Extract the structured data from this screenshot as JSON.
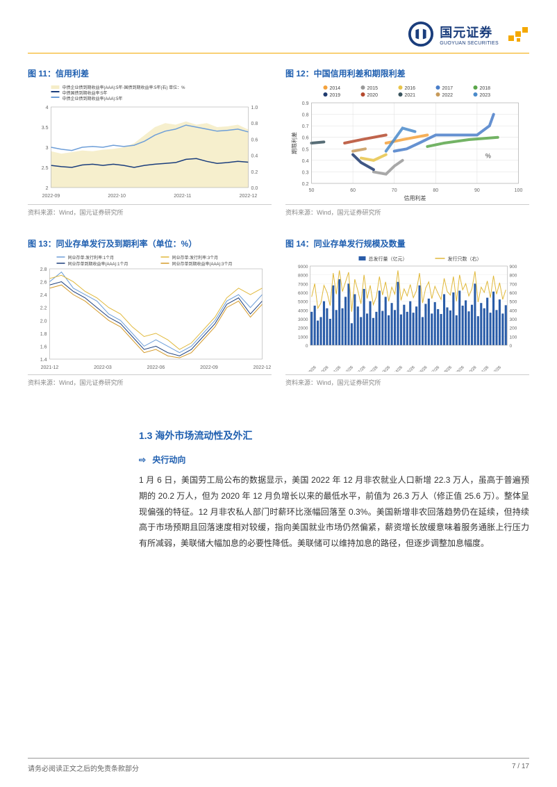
{
  "brand": {
    "cn": "国元证券",
    "en": "GUOYUAN SECURITIES",
    "logo_color": "#1a3d7c",
    "accent_color": "#f4a800"
  },
  "chart11": {
    "title": "图 11：信用利差",
    "type": "line-area",
    "legend": [
      "中债企业债到期收益率(AAA):5年-国债到期收益率:5年(右)  单位：%",
      "中债国债到期收益率:5年",
      "中债企业债到期收益率(AAA):5年"
    ],
    "legend_fontsize": 6,
    "x_ticks": [
      "2022-09",
      "2022-10",
      "2022-11",
      "2022-12"
    ],
    "y_left": {
      "min": 2,
      "max": 4,
      "step": 0.5
    },
    "y_right": {
      "min": 0,
      "max": 1,
      "step": 0.2
    },
    "series": {
      "area": {
        "color": "#f5edc8",
        "data": [
          0.45,
          0.42,
          0.44,
          0.46,
          0.45,
          0.47,
          0.48,
          0.5,
          0.55,
          0.65,
          0.75,
          0.8,
          0.78,
          0.82,
          0.78,
          0.8,
          0.75,
          0.76,
          0.78,
          0.72
        ]
      },
      "line_low": {
        "color": "#1a3d7c",
        "width": 1.5,
        "data": [
          2.55,
          2.52,
          2.5,
          2.56,
          2.58,
          2.55,
          2.58,
          2.55,
          2.5,
          2.55,
          2.58,
          2.6,
          2.62,
          2.7,
          2.72,
          2.65,
          2.6,
          2.62,
          2.65,
          2.63
        ]
      },
      "line_high": {
        "color": "#6d9ed8",
        "width": 1.5,
        "data": [
          3.0,
          2.95,
          2.92,
          3.0,
          3.02,
          3.0,
          3.05,
          3.02,
          3.05,
          3.15,
          3.3,
          3.4,
          3.45,
          3.55,
          3.5,
          3.45,
          3.4,
          3.42,
          3.45,
          3.38
        ]
      }
    },
    "source": "资料来源：Wind，国元证券研究所"
  },
  "chart12": {
    "title": "图 12：中国信用利差和期限利差",
    "type": "scatter-path",
    "legend_years": [
      "2014",
      "2015",
      "2016",
      "2017",
      "2018",
      "2019",
      "2020",
      "2021",
      "2022",
      "2023"
    ],
    "legend_colors": [
      "#f4a23c",
      "#999999",
      "#e8c44a",
      "#4a7ec9",
      "#5aa64a",
      "#1f3a6e",
      "#b54a2e",
      "#3a545e",
      "#c79a5a",
      "#4a8aca"
    ],
    "x_label": "信用利差",
    "y_label": "期限利差",
    "unit": "%",
    "xlim": [
      50,
      100
    ],
    "x_step": 10,
    "ylim": [
      0.2,
      0.9
    ],
    "y_step": 0.1,
    "paths": [
      {
        "color": "#f4a23c",
        "pts": [
          [
            68,
            0.55
          ],
          [
            72,
            0.58
          ],
          [
            75,
            0.6
          ],
          [
            78,
            0.62
          ]
        ]
      },
      {
        "color": "#999999",
        "pts": [
          [
            65,
            0.3
          ],
          [
            68,
            0.28
          ],
          [
            70,
            0.35
          ],
          [
            72,
            0.4
          ]
        ]
      },
      {
        "color": "#e8c44a",
        "pts": [
          [
            62,
            0.42
          ],
          [
            65,
            0.4
          ],
          [
            68,
            0.45
          ]
        ]
      },
      {
        "color": "#4a7ec9",
        "pts": [
          [
            70,
            0.48
          ],
          [
            73,
            0.5
          ],
          [
            76,
            0.55
          ],
          [
            80,
            0.62
          ],
          [
            90,
            0.62
          ],
          [
            93,
            0.7
          ],
          [
            94,
            0.8
          ]
        ]
      },
      {
        "color": "#5aa64a",
        "pts": [
          [
            78,
            0.52
          ],
          [
            82,
            0.55
          ],
          [
            88,
            0.58
          ],
          [
            95,
            0.6
          ]
        ]
      },
      {
        "color": "#1f3a6e",
        "pts": [
          [
            60,
            0.45
          ],
          [
            62,
            0.38
          ],
          [
            65,
            0.32
          ]
        ]
      },
      {
        "color": "#b54a2e",
        "pts": [
          [
            58,
            0.55
          ],
          [
            62,
            0.58
          ],
          [
            68,
            0.62
          ]
        ]
      },
      {
        "color": "#3a545e",
        "pts": [
          [
            50,
            0.55
          ],
          [
            53,
            0.56
          ]
        ]
      },
      {
        "color": "#c79a5a",
        "pts": [
          [
            63,
            0.5
          ],
          [
            60,
            0.48
          ]
        ]
      },
      {
        "color": "#4a8aca",
        "pts": [
          [
            68,
            0.48
          ],
          [
            72,
            0.68
          ],
          [
            75,
            0.65
          ]
        ]
      }
    ],
    "source": "资料来源：Wind，国元证券研究所"
  },
  "chart13": {
    "title": "图 13：同业存单发行及到期利率（单位：%）",
    "type": "line",
    "legend": [
      {
        "label": "同业存单:发行利率:1个月",
        "color": "#6d9ed8"
      },
      {
        "label": "同业存单:发行利率:3个月",
        "color": "#e0b83a"
      },
      {
        "label": "同业存单到期收益率(AAA):1个月",
        "color": "#1a3d7c"
      },
      {
        "label": "同业存单到期收益率(AAA):3个月",
        "color": "#d49a2a"
      }
    ],
    "x_ticks": [
      "2021-12",
      "2022-03",
      "2022-06",
      "2022-09",
      "2022-12"
    ],
    "ylim": [
      1.4,
      2.8
    ],
    "y_step": 0.2,
    "series": [
      {
        "color": "#6d9ed8",
        "data": [
          2.6,
          2.75,
          2.5,
          2.4,
          2.3,
          2.1,
          2.0,
          1.8,
          1.6,
          1.7,
          1.6,
          1.5,
          1.6,
          1.8,
          2.0,
          2.3,
          2.4,
          2.2,
          2.4
        ]
      },
      {
        "color": "#e0b83a",
        "data": [
          2.65,
          2.7,
          2.6,
          2.45,
          2.35,
          2.2,
          2.1,
          1.9,
          1.75,
          1.8,
          1.7,
          1.55,
          1.65,
          1.85,
          2.05,
          2.35,
          2.5,
          2.4,
          2.5
        ]
      },
      {
        "color": "#1a3d7c",
        "data": [
          2.55,
          2.6,
          2.45,
          2.35,
          2.2,
          2.05,
          1.95,
          1.75,
          1.55,
          1.6,
          1.5,
          1.45,
          1.55,
          1.75,
          1.95,
          2.25,
          2.35,
          2.1,
          2.3
        ]
      },
      {
        "color": "#d49a2a",
        "data": [
          2.5,
          2.55,
          2.4,
          2.3,
          2.15,
          2.0,
          1.9,
          1.7,
          1.5,
          1.55,
          1.45,
          1.42,
          1.5,
          1.7,
          1.9,
          2.2,
          2.3,
          2.05,
          2.25
        ]
      }
    ],
    "source": "资料来源：Wind，国元证券研究所"
  },
  "chart14": {
    "title": "图 14：同业存单发行规模及数量",
    "type": "bar-line",
    "legend": [
      {
        "label": "总发行量（亿元）",
        "color": "#2a5ca8",
        "type": "bar"
      },
      {
        "label": "发行只数（右）",
        "color": "#e0b83a",
        "type": "line"
      }
    ],
    "x_ticks": [
      "2021/9/26",
      "2021/10/26",
      "2021/11/26",
      "2021/12/26",
      "2022/1/26",
      "2022/2/26",
      "2022/3/26",
      "2022/4/26",
      "2022/5/26",
      "2022/6/26",
      "2022/7/26",
      "2022/8/26",
      "2022/9/26",
      "2022/10/26",
      "2022/11/26",
      "2022/12/26"
    ],
    "y_left": {
      "min": 0,
      "max": 9000,
      "step": 1000
    },
    "y_right": {
      "min": 0,
      "max": 900,
      "step": 100
    },
    "bars": {
      "color": "#2a5ca8",
      "data": [
        3800,
        4500,
        2800,
        3200,
        5000,
        4200,
        3000,
        6800,
        4000,
        7500,
        4200,
        5500,
        7000,
        2500,
        5800,
        4400,
        3200,
        6400,
        3600,
        5000,
        3100,
        3800,
        6200,
        3900,
        5500,
        3400,
        4800,
        4000,
        7200,
        3500,
        4600,
        3800,
        5000,
        3700,
        4400,
        6800,
        3200,
        4700,
        5300,
        3600,
        4900,
        4100,
        3550,
        5800,
        4300,
        3950,
        6000,
        3400,
        6200,
        4500,
        5100,
        3850,
        4600,
        7000,
        3300,
        4800,
        4200,
        5400,
        3700,
        6100,
        4000,
        5200,
        3600,
        4550
      ]
    },
    "line": {
      "color": "#e0b83a",
      "data": [
        550,
        700,
        420,
        480,
        680,
        600,
        450,
        820,
        580,
        850,
        610,
        720,
        830,
        380,
        750,
        620,
        470,
        800,
        530,
        680,
        460,
        550,
        780,
        570,
        720,
        500,
        660,
        580,
        850,
        510,
        640,
        560,
        690,
        540,
        620,
        820,
        480,
        650,
        720,
        530,
        670,
        590,
        520,
        760,
        610,
        570,
        780,
        500,
        800,
        630,
        700,
        560,
        640,
        840,
        490,
        660,
        600,
        730,
        540,
        790,
        580,
        710,
        520,
        630
      ]
    },
    "source": "资料来源：Wind，国元证券研究所"
  },
  "section": {
    "heading": "1.3 海外市场流动性及外汇",
    "sub_heading": "央行动向",
    "arrow": "⇨",
    "body": "1 月 6 日，美国劳工局公布的数据显示，美国 2022 年 12 月非农就业人口新增 22.3 万人，虽高于普遍预期的 20.2 万人，但为 2020 年 12 月负增长以来的最低水平，前值为 26.3 万人（修正值 25.6 万）。整体呈现偏强的特征。12 月非农私人部门时薪环比涨幅回落至 0.3%。美国新增非农回落趋势仍在延续，但持续高于市场预期且回落速度相对较缓，指向美国就业市场仍然偏紧，薪资增长放缓意味着服务通胀上行压力有所减弱，美联储大幅加息的必要性降低。美联储可以维持加息的路径，但逐步调整加息幅度。"
  },
  "footer": {
    "disclaimer": "请务必阅读正文之后的免责条款部分",
    "page": "7 / 17"
  }
}
